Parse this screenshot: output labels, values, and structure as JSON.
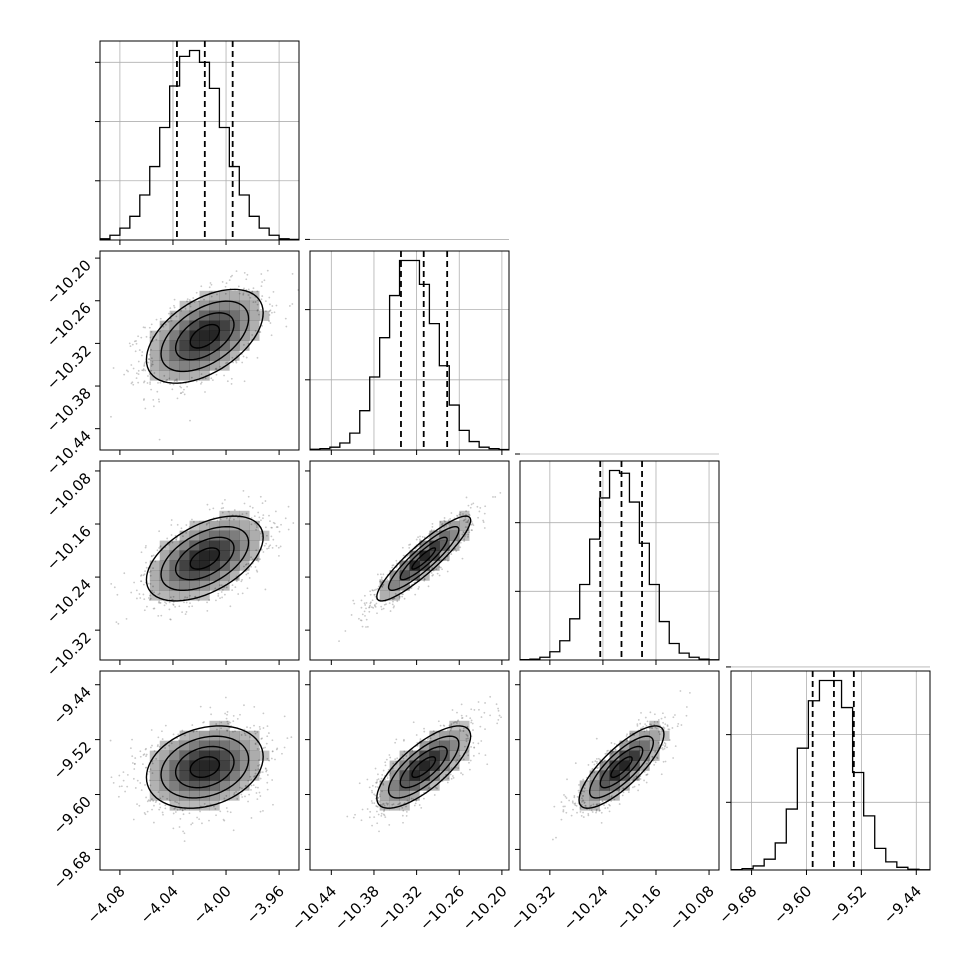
{
  "chart_data": {
    "type": "corner",
    "title": "",
    "parameters": [
      {
        "ticks": [
          -4.08,
          -4.04,
          -4.0,
          -3.96
        ],
        "tick_labels": [
          "−4.08",
          "−4.04",
          "−4.00",
          "−3.96"
        ],
        "range": [
          -4.095,
          -3.945
        ],
        "mean": -4.016,
        "sigma": 0.022,
        "quantiles": [
          -4.037,
          -4.016,
          -3.995
        ]
      },
      {
        "ticks": [
          -10.44,
          -10.38,
          -10.32,
          -10.26,
          -10.2
        ],
        "tick_labels": [
          "−10.44",
          "−10.38",
          "−10.32",
          "−10.26",
          "−10.20"
        ],
        "range": [
          -10.47,
          -10.19
        ],
        "mean": -10.31,
        "sigma": 0.033,
        "quantiles": [
          -10.342,
          -10.31,
          -10.277
        ]
      },
      {
        "ticks": [
          -10.32,
          -10.24,
          -10.16,
          -10.08
        ],
        "tick_labels": [
          "−10.32",
          "−10.24",
          "−10.16",
          "−10.08"
        ],
        "range": [
          -10.365,
          -10.065
        ],
        "mean": -10.212,
        "sigma": 0.032,
        "quantiles": [
          -10.244,
          -10.212,
          -10.181
        ]
      },
      {
        "ticks": [
          -9.68,
          -9.6,
          -9.52,
          -9.44
        ],
        "tick_labels": [
          "−9.68",
          "−9.60",
          "−9.52",
          "−9.44"
        ],
        "range": [
          -9.71,
          -9.42
        ],
        "mean": -9.56,
        "sigma": 0.03,
        "quantiles": [
          -9.591,
          -9.56,
          -9.531
        ]
      }
    ],
    "correlations": {
      "1-0": 0.5,
      "2-0": 0.5,
      "2-1": 0.9,
      "3-0": 0.25,
      "3-1": 0.75,
      "3-2": 0.8
    },
    "histograms": [
      [
        1,
        4,
        10,
        20,
        38,
        62,
        95,
        130,
        155,
        160,
        150,
        128,
        95,
        62,
        38,
        20,
        10,
        4,
        1,
        0.5
      ],
      [
        0.5,
        1,
        2,
        5,
        12,
        28,
        52,
        80,
        110,
        135,
        135,
        118,
        90,
        60,
        32,
        14,
        6,
        2,
        1,
        0.3
      ],
      [
        0.3,
        0.6,
        2,
        6,
        14,
        30,
        55,
        88,
        118,
        138,
        136,
        115,
        85,
        55,
        28,
        12,
        5,
        2,
        0.6,
        0.2
      ],
      [
        0.3,
        1,
        3,
        8,
        20,
        45,
        90,
        125,
        140,
        140,
        120,
        72,
        40,
        16,
        6,
        2,
        0.5,
        0.2
      ]
    ],
    "grid": true,
    "colors": {
      "line": "#000000",
      "density": "#000000",
      "grid": "#b0b0b0",
      "points": "#888888"
    }
  }
}
